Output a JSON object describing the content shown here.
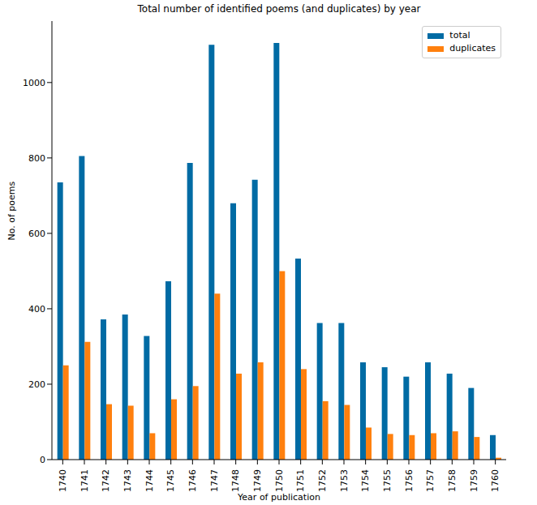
{
  "chart_data": {
    "type": "bar",
    "title": "Total number of identified poems (and duplicates) by year",
    "x_label": "Year of publication",
    "y_label": "No. of poems",
    "categories": [
      "1740",
      "1741",
      "1742",
      "1743",
      "1744",
      "1745",
      "1746",
      "1747",
      "1748",
      "1749",
      "1750",
      "1751",
      "1752",
      "1753",
      "1754",
      "1755",
      "1756",
      "1757",
      "1758",
      "1759",
      "1760"
    ],
    "series": [
      {
        "name": "total",
        "color": "#006ba4",
        "values": [
          735,
          805,
          372,
          385,
          328,
          473,
          787,
          1100,
          680,
          742,
          1105,
          533,
          362,
          362,
          258,
          245,
          220,
          258,
          228,
          190,
          65
        ]
      },
      {
        "name": "duplicates",
        "color": "#ff800e",
        "values": [
          250,
          312,
          147,
          143,
          70,
          160,
          195,
          440,
          228,
          258,
          500,
          240,
          155,
          145,
          85,
          68,
          65,
          70,
          75,
          60,
          5
        ]
      }
    ],
    "ylim": [
      0,
      1163
    ],
    "yticks": [
      0,
      200,
      400,
      600,
      800,
      1000
    ],
    "grid": false,
    "legend": "upper right"
  }
}
